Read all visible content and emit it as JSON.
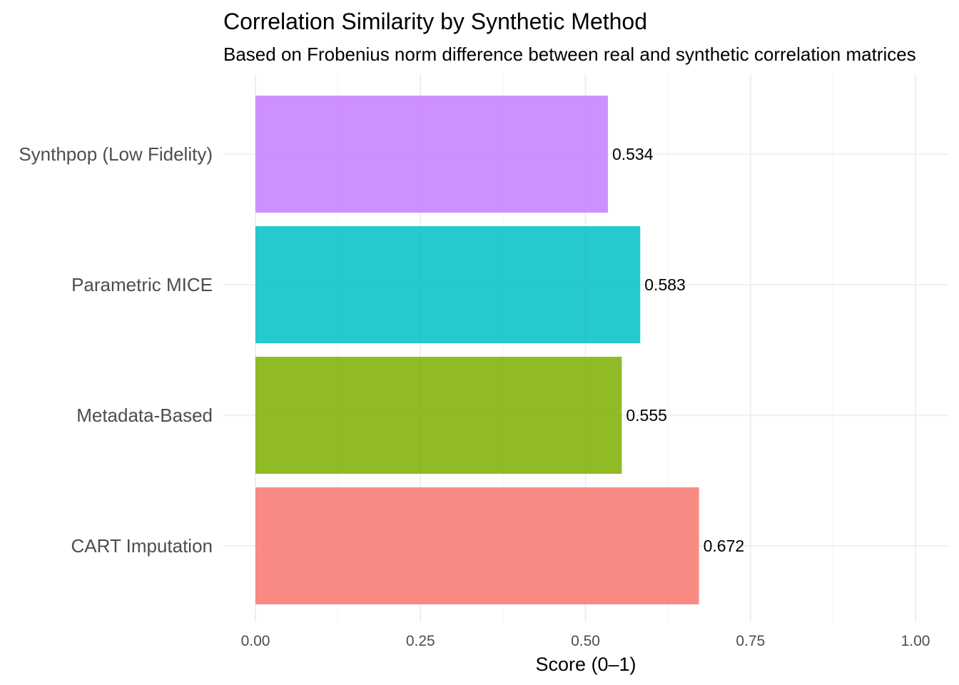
{
  "chart_data": {
    "type": "bar",
    "orientation": "horizontal",
    "title": "Correlation Similarity by Synthetic Method",
    "subtitle": "Based on Frobenius norm difference between real and synthetic correlation matrices",
    "xlabel": "Score (0–1)",
    "ylabel": "",
    "xlim": [
      0,
      1
    ],
    "x_ticks": [
      0,
      0.25,
      0.5,
      0.75,
      1
    ],
    "x_tick_labels": [
      "0.00",
      "0.25",
      "0.50",
      "0.75",
      "1.00"
    ],
    "categories": [
      "CART Imputation",
      "Metadata-Based",
      "Parametric MICE",
      "Synthpop (Low Fidelity)"
    ],
    "values": [
      0.672,
      0.555,
      0.583,
      0.534
    ],
    "value_labels": [
      "0.672",
      "0.555",
      "0.583",
      "0.534"
    ],
    "colors": [
      "#F8766D",
      "#7CAE00",
      "#00BFC4",
      "#C77CFF"
    ],
    "grid": true,
    "legend": "none"
  }
}
